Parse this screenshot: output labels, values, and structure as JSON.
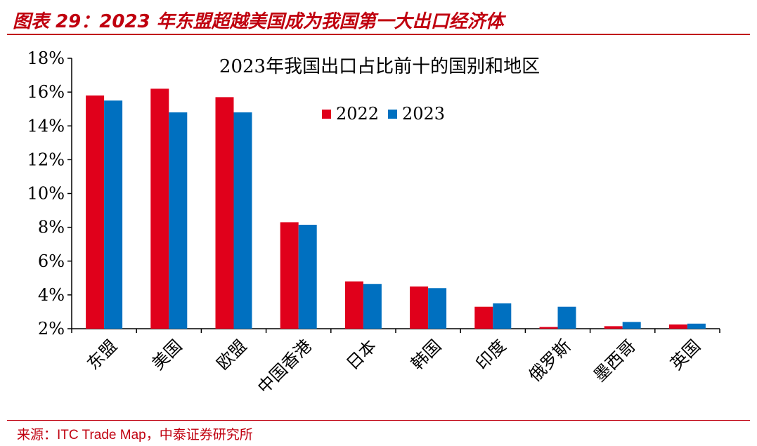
{
  "header": {
    "figure_title": "图表 29：2023 年东盟超越美国成为我国第一大出口经济体"
  },
  "footer": {
    "source_label": "来源：",
    "source_text": "ITC Trade Map，",
    "source_org": "中泰证券研究所"
  },
  "colors": {
    "accent": "#c0000f",
    "series_2022": "#e0001b",
    "series_2023": "#0070c0",
    "axis": "#000000"
  },
  "chart_data": {
    "type": "bar",
    "title": "2023年我国出口占比前十的国别和地区",
    "categories": [
      "东盟",
      "美国",
      "欧盟",
      "中国香港",
      "日本",
      "韩国",
      "印度",
      "俄罗斯",
      "墨西哥",
      "英国"
    ],
    "series": [
      {
        "name": "2022",
        "values": [
          15.8,
          16.2,
          15.7,
          8.3,
          4.8,
          4.5,
          3.3,
          2.1,
          2.15,
          2.25
        ]
      },
      {
        "name": "2023",
        "values": [
          15.5,
          14.8,
          14.8,
          8.15,
          4.65,
          4.4,
          3.5,
          3.3,
          2.4,
          2.3
        ]
      }
    ],
    "yticks": [
      "2%",
      "4%",
      "6%",
      "8%",
      "10%",
      "12%",
      "14%",
      "16%",
      "18%"
    ],
    "ylim": [
      2,
      18
    ],
    "xlabel": "",
    "ylabel": "",
    "grid": false,
    "legend_position": "top-center"
  }
}
